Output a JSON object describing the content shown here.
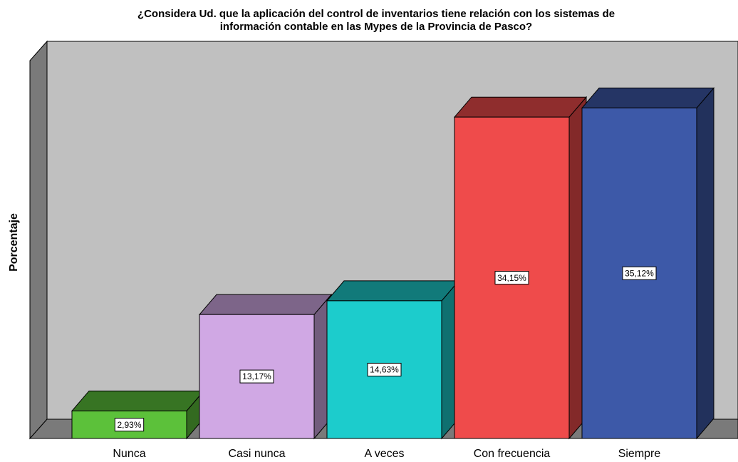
{
  "chart_data": {
    "type": "bar3d",
    "title": [
      "¿Considera Ud. que la aplicación del control de inventarios tiene relación con los sistemas de",
      "información contable en las Mypes de la Provincia de Pasco?"
    ],
    "ylabel": "Porcentaje",
    "categories": [
      "Nunca",
      "Casi nunca",
      "A veces",
      "Con frecuencia",
      "Siempre"
    ],
    "values": [
      2.93,
      13.17,
      14.63,
      34.15,
      35.12
    ],
    "value_labels": [
      "2,93%",
      "13,17%",
      "14,63%",
      "34,15%",
      "35,12%"
    ],
    "colors": [
      "#5cc13a",
      "#d0a8e4",
      "#1ccccc",
      "#ef4b4b",
      "#3d59a8"
    ],
    "ylim": [
      0,
      40
    ]
  }
}
